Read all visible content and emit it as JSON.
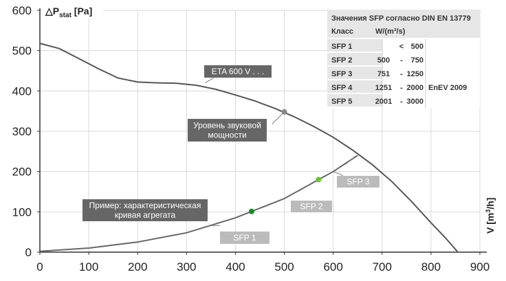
{
  "chart_data": {
    "type": "line",
    "y_axis_label": {
      "prefix": "△P",
      "subscript": "stat",
      "suffix": " [Pa]"
    },
    "x_axis_label": {
      "prefix": "V [m",
      "superscript": "3",
      "suffix": "/h]"
    },
    "xlim": [
      0,
      900
    ],
    "ylim": [
      0,
      600
    ],
    "x_ticks": [
      0,
      100,
      200,
      300,
      400,
      500,
      600,
      700,
      800,
      900
    ],
    "y_ticks": [
      0,
      100,
      200,
      300,
      400,
      500,
      600
    ],
    "grid": true,
    "series": [
      {
        "name": "ETA 600 V . . .",
        "color": "#555555",
        "points": [
          [
            0,
            518
          ],
          [
            40,
            505
          ],
          [
            80,
            480
          ],
          [
            120,
            455
          ],
          [
            160,
            432
          ],
          [
            200,
            422
          ],
          [
            240,
            420
          ],
          [
            280,
            419
          ],
          [
            320,
            414
          ],
          [
            360,
            404
          ],
          [
            400,
            390
          ],
          [
            440,
            375
          ],
          [
            480,
            357
          ],
          [
            520,
            336
          ],
          [
            560,
            312
          ],
          [
            600,
            285
          ],
          [
            640,
            253
          ],
          [
            680,
            217
          ],
          [
            720,
            175
          ],
          [
            760,
            126
          ],
          [
            800,
            73
          ],
          [
            830,
            35
          ],
          [
            855,
            0
          ]
        ]
      },
      {
        "name": "Пример: характеристическая кривая агрегата",
        "color": "#666666",
        "points": [
          [
            0,
            2
          ],
          [
            100,
            10
          ],
          [
            200,
            25
          ],
          [
            300,
            48
          ],
          [
            400,
            85
          ],
          [
            500,
            133
          ],
          [
            600,
            200
          ],
          [
            650,
            240
          ]
        ]
      }
    ],
    "markers": [
      {
        "x": 500,
        "y": 348,
        "color": "#888888"
      },
      {
        "x": 433,
        "y": 101,
        "color": "#1a8a2a"
      },
      {
        "x": 570,
        "y": 180,
        "color": "#6fbf3a"
      }
    ],
    "labels": [
      {
        "text": "ETA 600 V . . .",
        "style": "dark"
      },
      {
        "text": "Уровень звуковой\nмощности",
        "style": "dark"
      },
      {
        "text": "Пример: характеристическая\nкривая агрегата",
        "style": "dark"
      },
      {
        "text": "SFP 1",
        "style": "light"
      },
      {
        "text": "SFP 2",
        "style": "light"
      },
      {
        "text": "SFP 3",
        "style": "light"
      }
    ],
    "table": {
      "title": "Значения SFP согласно DIN EN 13779",
      "header": [
        "Класс",
        "W/(m³/s)"
      ],
      "rows": [
        [
          "SFP 1",
          "",
          "<",
          "500",
          ""
        ],
        [
          "SFP 2",
          "500",
          "-",
          "750",
          ""
        ],
        [
          "SFP 3",
          "751",
          "-",
          "1250",
          ""
        ],
        [
          "SFP 4",
          "1251",
          "-",
          "2000",
          "EnEV 2009"
        ],
        [
          "SFP 5",
          "2001",
          "-",
          "3000",
          ""
        ]
      ]
    }
  }
}
